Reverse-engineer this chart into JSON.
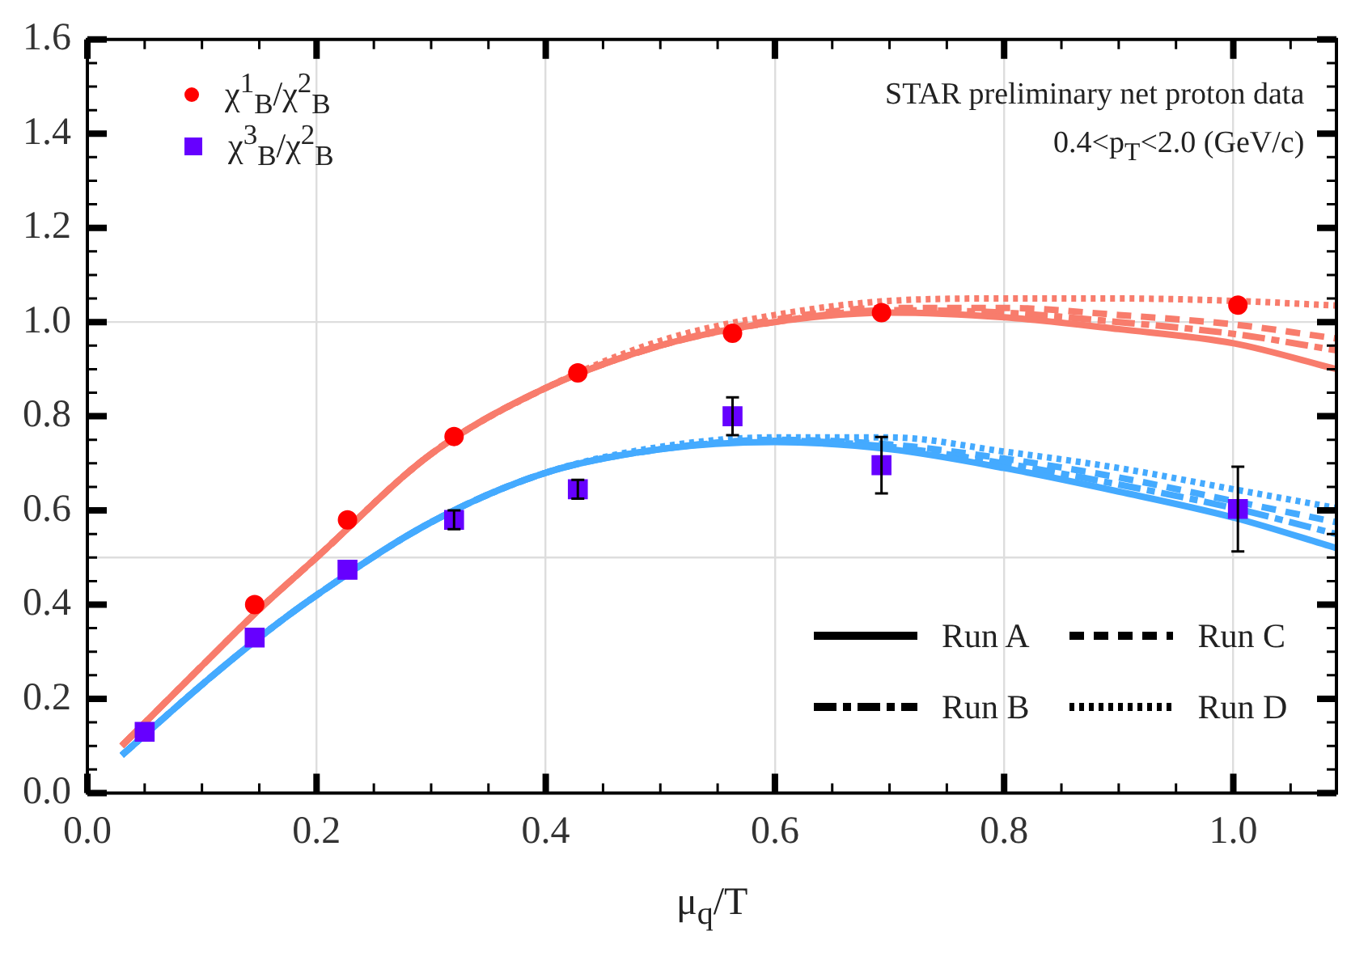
{
  "chart_data": {
    "type": "line",
    "xlabel": "μ$_{q}$/T",
    "annotations": [
      "STAR preliminary net proton data",
      "0.4<p$_{T}$<2.0 (GeV/c)",
      "Run A",
      "Run B",
      "Run C",
      "Run D"
    ],
    "xlim": [
      0,
      1.09
    ],
    "xticks": [
      {
        "value": 0,
        "label": "0.0"
      },
      {
        "value": 0.05,
        "label": null
      },
      {
        "value": 0.1,
        "label": null
      },
      {
        "value": 0.15,
        "label": null
      },
      {
        "value": 0.2,
        "label": "0.2"
      },
      {
        "value": 0.25,
        "label": null
      },
      {
        "value": 0.3,
        "label": null
      },
      {
        "value": 0.35,
        "label": null
      },
      {
        "value": 0.4,
        "label": "0.4"
      },
      {
        "value": 0.45,
        "label": null
      },
      {
        "value": 0.5,
        "label": null
      },
      {
        "value": 0.55,
        "label": null
      },
      {
        "value": 0.6,
        "label": "0.6"
      },
      {
        "value": 0.65,
        "label": null
      },
      {
        "value": 0.7,
        "label": null
      },
      {
        "value": 0.75,
        "label": null
      },
      {
        "value": 0.8,
        "label": "0.8"
      },
      {
        "value": 0.85,
        "label": null
      },
      {
        "value": 0.9,
        "label": null
      },
      {
        "value": 0.95,
        "label": null
      },
      {
        "value": 1.0,
        "label": "1.0"
      },
      {
        "value": 1.05,
        "label": null
      }
    ],
    "ylim": [
      0,
      1.6
    ],
    "yticks": [
      {
        "value": 0,
        "label": "0.0"
      },
      {
        "value": 0.05,
        "label": null
      },
      {
        "value": 0.1,
        "label": null
      },
      {
        "value": 0.15,
        "label": null
      },
      {
        "value": 0.2,
        "label": "0.2"
      },
      {
        "value": 0.25,
        "label": null
      },
      {
        "value": 0.3,
        "label": null
      },
      {
        "value": 0.35,
        "label": null
      },
      {
        "value": 0.4,
        "label": "0.4"
      },
      {
        "value": 0.45,
        "label": null
      },
      {
        "value": 0.5,
        "label": null
      },
      {
        "value": 0.55,
        "label": null
      },
      {
        "value": 0.6,
        "label": "0.6"
      },
      {
        "value": 0.65,
        "label": null
      },
      {
        "value": 0.7,
        "label": null
      },
      {
        "value": 0.75,
        "label": null
      },
      {
        "value": 0.8,
        "label": "0.8"
      },
      {
        "value": 0.85,
        "label": null
      },
      {
        "value": 0.9,
        "label": null
      },
      {
        "value": 0.95,
        "label": null
      },
      {
        "value": 1.0,
        "label": "1.0"
      },
      {
        "value": 1.05,
        "label": null
      },
      {
        "value": 1.1,
        "label": null
      },
      {
        "value": 1.15,
        "label": null
      },
      {
        "value": 1.2,
        "label": "1.2"
      },
      {
        "value": 1.25,
        "label": null
      },
      {
        "value": 1.3,
        "label": null
      },
      {
        "value": 1.35,
        "label": null
      },
      {
        "value": 1.4,
        "label": "1.4"
      },
      {
        "value": 1.45,
        "label": null
      },
      {
        "value": 1.5,
        "label": null
      },
      {
        "value": 1.55,
        "label": null
      },
      {
        "value": 1.6,
        "label": "1.6"
      }
    ],
    "grid": "x",
    "ref_lines": [
      {
        "axis": "y",
        "value": 0.5,
        "color": "#dddddd"
      },
      {
        "axis": "y",
        "value": 1.0,
        "color": "#dddddd"
      }
    ],
    "legend": "top left",
    "x": [
      0.03,
      0.1,
      0.15,
      0.2,
      0.3,
      0.4,
      0.5,
      0.6,
      0.7,
      0.8,
      0.9,
      1.0,
      1.09
    ],
    "series": [
      {
        "type": "scatter",
        "name": "χ$^{1}$$_{B}$/χ$^{2}$$_{B}$",
        "color": "#ff0000",
        "marker": "circle",
        "x": [
          0.146,
          0.227,
          0.32,
          0.428,
          0.563,
          0.693,
          1.004
        ],
        "values": [
          0.4,
          0.58,
          0.757,
          0.892,
          0.976,
          1.02,
          1.036
        ]
      },
      {
        "type": "scatter",
        "name": "χ$^{3}$$_{B}$/χ$^{2}$$_{B}$",
        "color": "#6600ff",
        "marker": "square",
        "x": [
          0.05,
          0.146,
          0.227,
          0.32,
          0.428,
          0.563,
          0.693,
          1.004
        ],
        "values": [
          0.13,
          0.33,
          0.474,
          0.58,
          0.645,
          0.8,
          0.696,
          0.603
        ],
        "errors": [
          null,
          null,
          null,
          0.02,
          0.02,
          0.04,
          0.06,
          0.09
        ]
      },
      {
        "line_style": "solid",
        "color": "#f87c6c",
        "values": [
          0.1,
          0.27,
          0.39,
          0.5,
          0.72,
          0.86,
          0.95,
          1.0,
          1.02,
          1.01,
          0.985,
          0.955,
          0.9
        ]
      },
      {
        "line_style": "dashdot",
        "color": "#f87c6c",
        "values": [
          0.1,
          0.27,
          0.39,
          0.5,
          0.72,
          0.86,
          0.95,
          1.0,
          1.025,
          1.02,
          1.0,
          0.975,
          0.94
        ]
      },
      {
        "line_style": "dashed",
        "color": "#f87c6c",
        "values": [
          0.1,
          0.27,
          0.39,
          0.5,
          0.72,
          0.86,
          0.95,
          1.005,
          1.03,
          1.03,
          1.015,
          0.995,
          0.965
        ]
      },
      {
        "line_style": "dotted",
        "color": "#f87c6c",
        "values": [
          0.1,
          0.27,
          0.39,
          0.5,
          0.72,
          0.86,
          0.96,
          1.015,
          1.045,
          1.05,
          1.05,
          1.045,
          1.035
        ]
      },
      {
        "line_style": "solid",
        "color": "#44aaff",
        "values": [
          0.08,
          0.23,
          0.33,
          0.42,
          0.575,
          0.68,
          0.73,
          0.745,
          0.73,
          0.69,
          0.64,
          0.585,
          0.52
        ]
      },
      {
        "line_style": "dashdot",
        "color": "#44aaff",
        "values": [
          0.08,
          0.23,
          0.33,
          0.42,
          0.575,
          0.68,
          0.73,
          0.748,
          0.735,
          0.7,
          0.655,
          0.605,
          0.55
        ]
      },
      {
        "line_style": "dashed",
        "color": "#44aaff",
        "values": [
          0.08,
          0.23,
          0.33,
          0.42,
          0.575,
          0.68,
          0.73,
          0.75,
          0.74,
          0.71,
          0.67,
          0.62,
          0.575
        ]
      },
      {
        "line_style": "dotted",
        "color": "#44aaff",
        "values": [
          0.08,
          0.23,
          0.33,
          0.42,
          0.575,
          0.68,
          0.735,
          0.755,
          0.755,
          0.725,
          0.69,
          0.645,
          0.605
        ]
      }
    ]
  }
}
